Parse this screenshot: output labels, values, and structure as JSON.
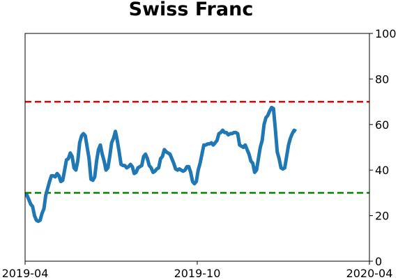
{
  "chart_data": {
    "type": "line",
    "title": "Swiss Franc",
    "xlabel": "",
    "ylabel": "",
    "x_range": [
      "2019-04-01",
      "2020-04-01"
    ],
    "x_ticks": [
      "2019-04",
      "2019-10",
      "2020-04"
    ],
    "y_axis_side": "right",
    "ylim": [
      0,
      100
    ],
    "y_ticks": [
      0,
      20,
      40,
      60,
      80,
      100
    ],
    "grid": false,
    "legend": "none",
    "reference_lines": [
      {
        "y": 70,
        "color": "#dd0000",
        "style": "dashed"
      },
      {
        "y": 30,
        "color": "#008000",
        "style": "dashed"
      }
    ],
    "series": [
      {
        "color": "#1f77b4",
        "points": [
          [
            "2019-04-01",
            29
          ],
          [
            "2019-04-03",
            29
          ],
          [
            "2019-04-05",
            27
          ],
          [
            "2019-04-07",
            25
          ],
          [
            "2019-04-09",
            24
          ],
          [
            "2019-04-11",
            20
          ],
          [
            "2019-04-13",
            18
          ],
          [
            "2019-04-15",
            17.5
          ],
          [
            "2019-04-17",
            18
          ],
          [
            "2019-04-19",
            21
          ],
          [
            "2019-04-21",
            23
          ],
          [
            "2019-04-23",
            29
          ],
          [
            "2019-04-25",
            32
          ],
          [
            "2019-04-27",
            35
          ],
          [
            "2019-04-29",
            37.5
          ],
          [
            "2019-05-01",
            37.5
          ],
          [
            "2019-05-03",
            37
          ],
          [
            "2019-05-05",
            38.5
          ],
          [
            "2019-05-07",
            37.5
          ],
          [
            "2019-05-09",
            35
          ],
          [
            "2019-05-11",
            35.5
          ],
          [
            "2019-05-13",
            40
          ],
          [
            "2019-05-15",
            44.5
          ],
          [
            "2019-05-17",
            45
          ],
          [
            "2019-05-19",
            47.5
          ],
          [
            "2019-05-21",
            46
          ],
          [
            "2019-05-23",
            41
          ],
          [
            "2019-05-25",
            40
          ],
          [
            "2019-05-27",
            44
          ],
          [
            "2019-05-29",
            52
          ],
          [
            "2019-05-31",
            55
          ],
          [
            "2019-06-02",
            56
          ],
          [
            "2019-06-04",
            55
          ],
          [
            "2019-06-06",
            50
          ],
          [
            "2019-06-08",
            45
          ],
          [
            "2019-06-10",
            36
          ],
          [
            "2019-06-12",
            35.5
          ],
          [
            "2019-06-14",
            37
          ],
          [
            "2019-06-16",
            44
          ],
          [
            "2019-06-18",
            49
          ],
          [
            "2019-06-20",
            51
          ],
          [
            "2019-06-22",
            47
          ],
          [
            "2019-06-24",
            44
          ],
          [
            "2019-06-26",
            40
          ],
          [
            "2019-06-28",
            41
          ],
          [
            "2019-06-30",
            46
          ],
          [
            "2019-07-02",
            52
          ],
          [
            "2019-07-04",
            54
          ],
          [
            "2019-07-06",
            57
          ],
          [
            "2019-07-08",
            53
          ],
          [
            "2019-07-10",
            48
          ],
          [
            "2019-07-12",
            42.5
          ],
          [
            "2019-07-14",
            42
          ],
          [
            "2019-07-16",
            42
          ],
          [
            "2019-07-18",
            41
          ],
          [
            "2019-07-20",
            41.5
          ],
          [
            "2019-07-22",
            42.5
          ],
          [
            "2019-07-24",
            41.5
          ],
          [
            "2019-07-26",
            38.5
          ],
          [
            "2019-07-28",
            39
          ],
          [
            "2019-07-30",
            41
          ],
          [
            "2019-08-01",
            41.5
          ],
          [
            "2019-08-03",
            42
          ],
          [
            "2019-08-05",
            46
          ],
          [
            "2019-08-07",
            47
          ],
          [
            "2019-08-09",
            45
          ],
          [
            "2019-08-11",
            42
          ],
          [
            "2019-08-13",
            41
          ],
          [
            "2019-08-15",
            39
          ],
          [
            "2019-08-17",
            39.5
          ],
          [
            "2019-08-19",
            40.5
          ],
          [
            "2019-08-21",
            41
          ],
          [
            "2019-08-23",
            45
          ],
          [
            "2019-08-25",
            46
          ],
          [
            "2019-08-27",
            49
          ],
          [
            "2019-08-29",
            48
          ],
          [
            "2019-08-31",
            47.5
          ],
          [
            "2019-09-02",
            47
          ],
          [
            "2019-09-04",
            45
          ],
          [
            "2019-09-06",
            43
          ],
          [
            "2019-09-08",
            40.5
          ],
          [
            "2019-09-10",
            40
          ],
          [
            "2019-09-12",
            40.5
          ],
          [
            "2019-09-14",
            40
          ],
          [
            "2019-09-16",
            39.5
          ],
          [
            "2019-09-18",
            40
          ],
          [
            "2019-09-20",
            41.5
          ],
          [
            "2019-09-22",
            41.5
          ],
          [
            "2019-09-24",
            39
          ],
          [
            "2019-09-26",
            35
          ],
          [
            "2019-09-28",
            34
          ],
          [
            "2019-09-30",
            35
          ],
          [
            "2019-10-02",
            40
          ],
          [
            "2019-10-04",
            43
          ],
          [
            "2019-10-06",
            47
          ],
          [
            "2019-10-08",
            51
          ],
          [
            "2019-10-10",
            51
          ],
          [
            "2019-10-12",
            51.5
          ],
          [
            "2019-10-14",
            51.5
          ],
          [
            "2019-10-16",
            52
          ],
          [
            "2019-10-18",
            51
          ],
          [
            "2019-10-20",
            52
          ],
          [
            "2019-10-22",
            53
          ],
          [
            "2019-10-24",
            56
          ],
          [
            "2019-10-26",
            56.5
          ],
          [
            "2019-10-28",
            57.5
          ],
          [
            "2019-10-30",
            56.5
          ],
          [
            "2019-11-01",
            56.5
          ],
          [
            "2019-11-03",
            55.5
          ],
          [
            "2019-11-05",
            56
          ],
          [
            "2019-11-07",
            56
          ],
          [
            "2019-11-09",
            56.5
          ],
          [
            "2019-11-11",
            56.5
          ],
          [
            "2019-11-13",
            56
          ],
          [
            "2019-11-15",
            51
          ],
          [
            "2019-11-17",
            50.5
          ],
          [
            "2019-11-19",
            50
          ],
          [
            "2019-11-21",
            51
          ],
          [
            "2019-11-23",
            49
          ],
          [
            "2019-11-25",
            47
          ],
          [
            "2019-11-27",
            44
          ],
          [
            "2019-11-29",
            43
          ],
          [
            "2019-12-01",
            39
          ],
          [
            "2019-12-03",
            40
          ],
          [
            "2019-12-05",
            45
          ],
          [
            "2019-12-07",
            50
          ],
          [
            "2019-12-09",
            53
          ],
          [
            "2019-12-11",
            60
          ],
          [
            "2019-12-13",
            63
          ],
          [
            "2019-12-15",
            64
          ],
          [
            "2019-12-17",
            66
          ],
          [
            "2019-12-19",
            67.5
          ],
          [
            "2019-12-21",
            67
          ],
          [
            "2019-12-23",
            58
          ],
          [
            "2019-12-25",
            48
          ],
          [
            "2019-12-27",
            45
          ],
          [
            "2019-12-29",
            41
          ],
          [
            "2019-12-31",
            40.5
          ],
          [
            "2020-01-02",
            41
          ],
          [
            "2020-01-04",
            46
          ],
          [
            "2020-01-06",
            51
          ],
          [
            "2020-01-08",
            54
          ],
          [
            "2020-01-10",
            56
          ],
          [
            "2020-01-12",
            57.5
          ],
          [
            "2020-01-14",
            57
          ]
        ]
      }
    ]
  }
}
